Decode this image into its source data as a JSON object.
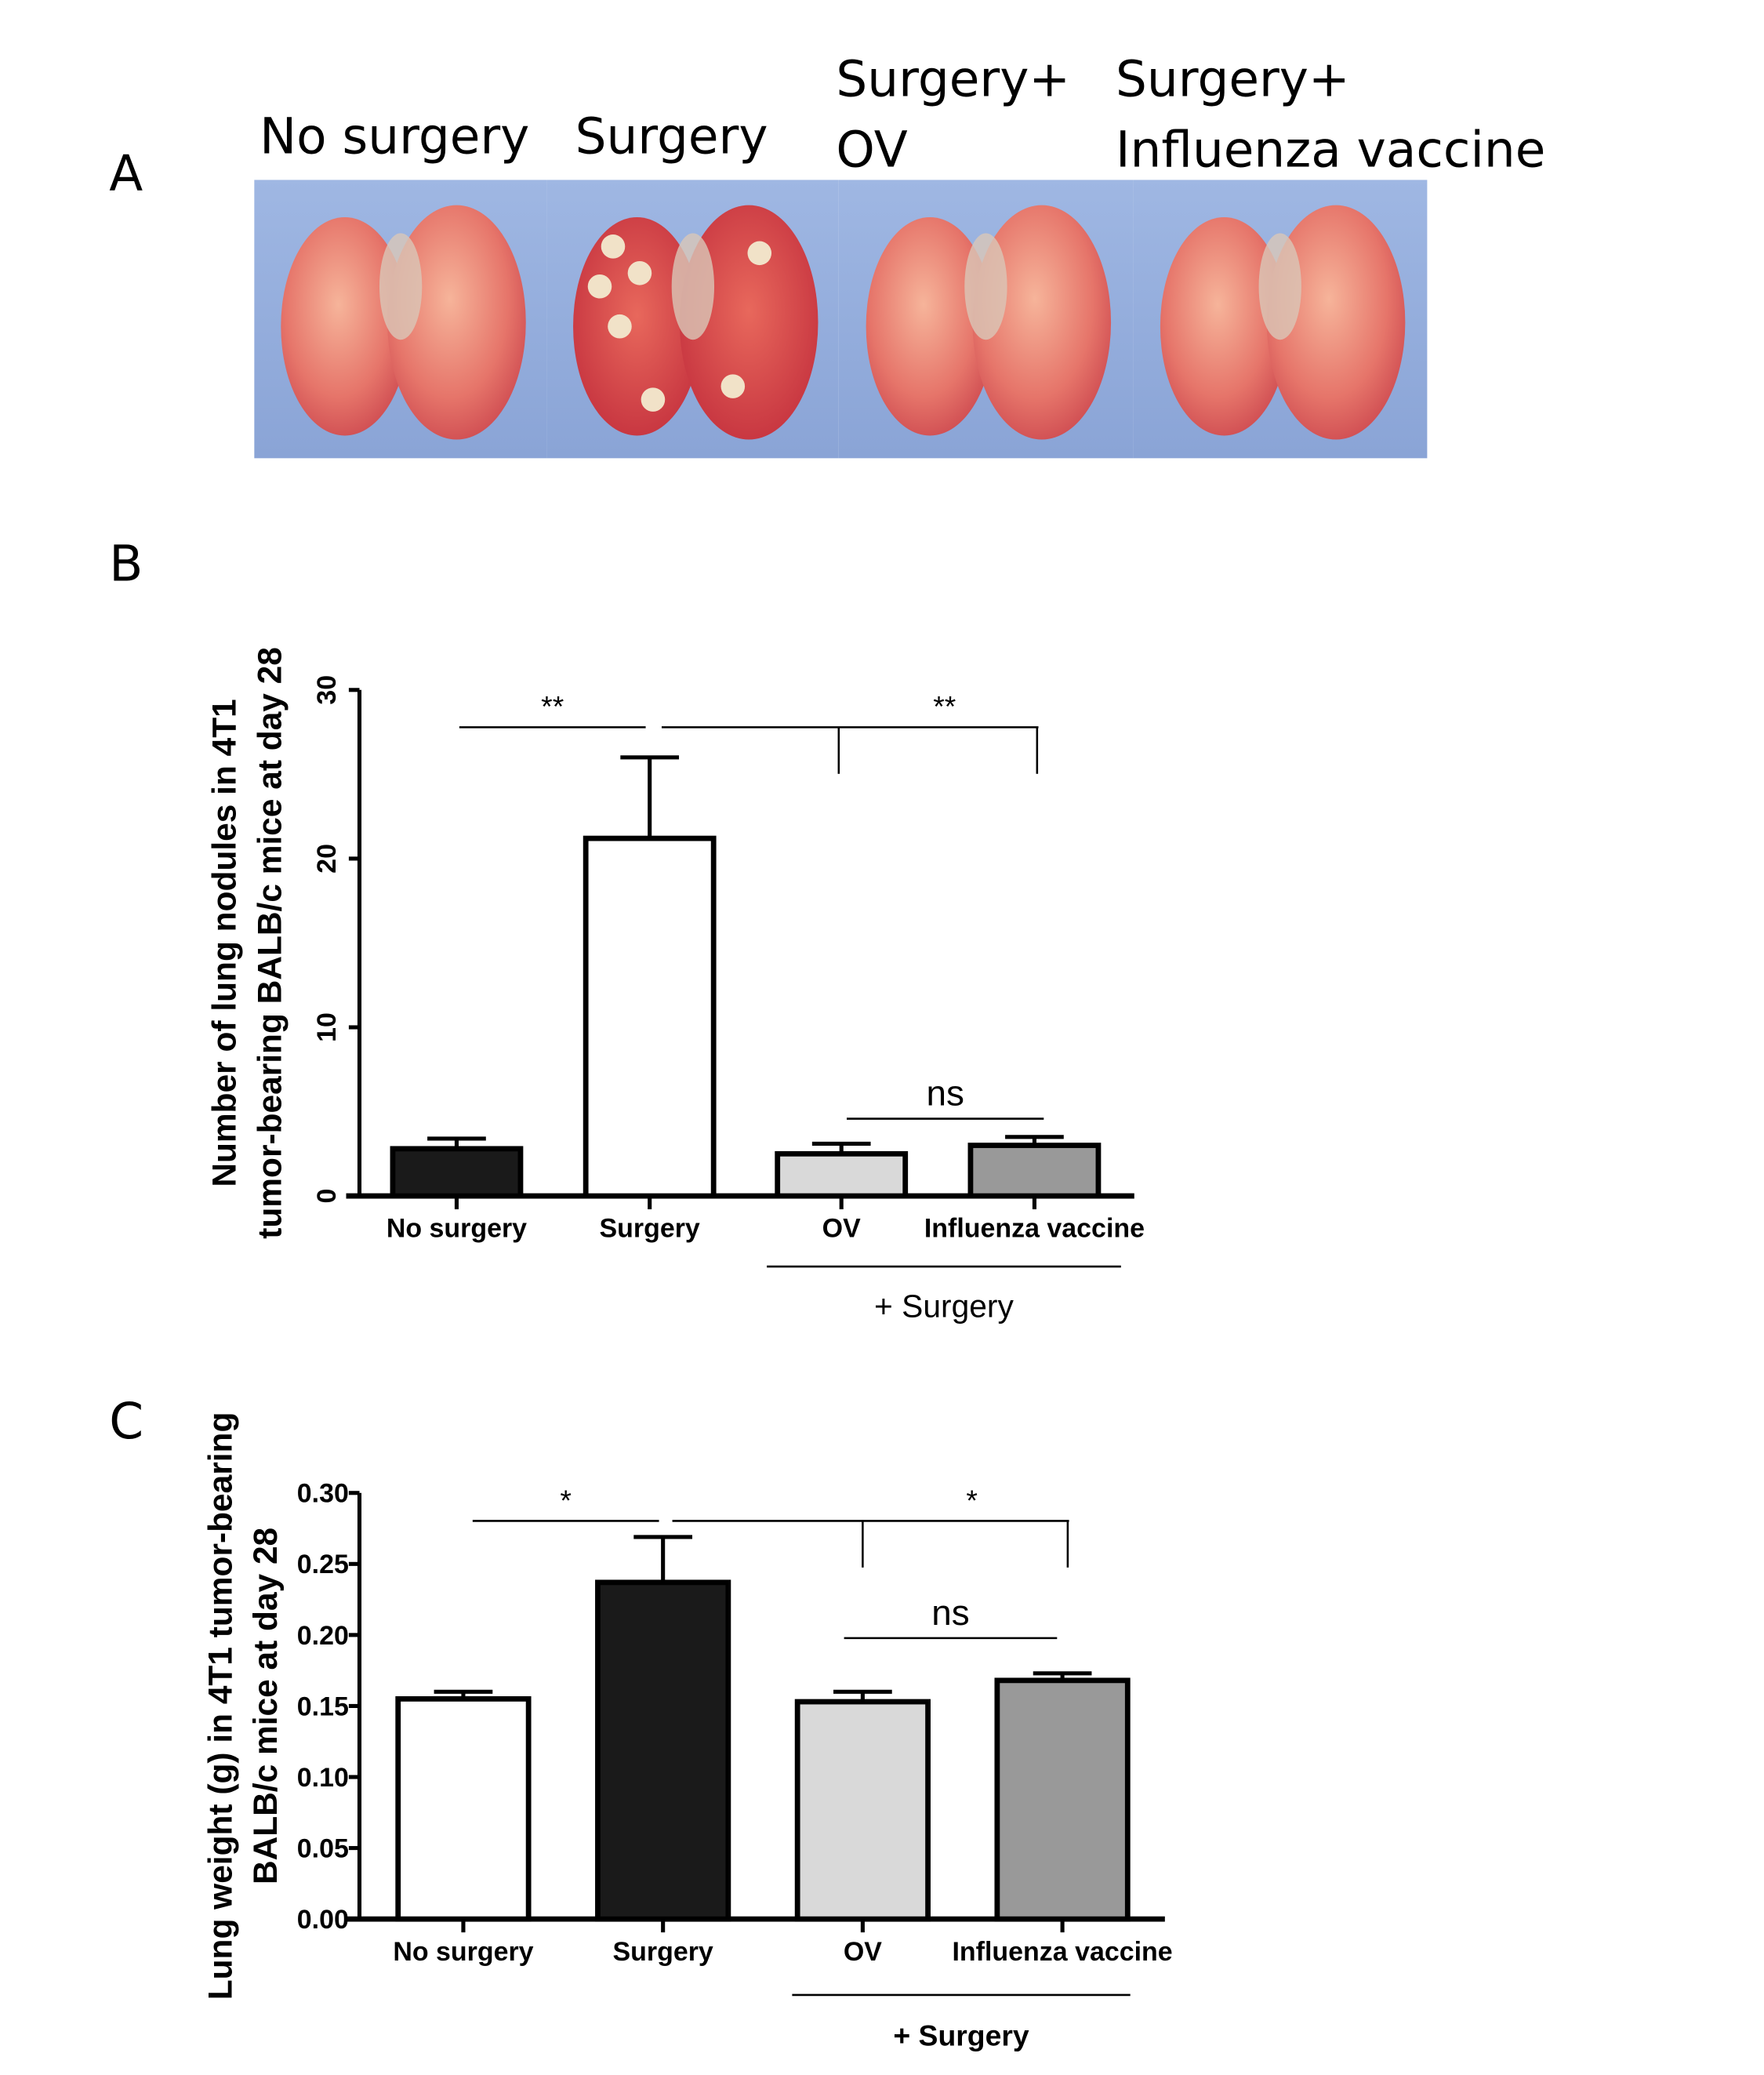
{
  "panel_labels": {
    "a": "A",
    "b": "B",
    "c": "C"
  },
  "photo_titles": [
    {
      "lines": [
        "No surgery"
      ]
    },
    {
      "lines": [
        "Surgery"
      ]
    },
    {
      "lines": [
        "Surgery+",
        "OV"
      ]
    },
    {
      "lines": [
        "Surgery+",
        "Influenza vaccine"
      ]
    }
  ],
  "chart_data": [
    {
      "type": "bar",
      "panel": "B",
      "categories": [
        "No surgery",
        "Surgery",
        "OV",
        "Influenza vaccine"
      ],
      "values": [
        2.8,
        21.2,
        2.5,
        3.0
      ],
      "error_upper": [
        3.4,
        26.0,
        3.1,
        3.5
      ],
      "colors": [
        "#1a1a1a",
        "#ffffff",
        "#d9d9d9",
        "#999999"
      ],
      "ylabel": [
        "Number of lung nodules in 4T1",
        "tumor-bearing BALB/c mice at day 28"
      ],
      "ylim": [
        0,
        30
      ],
      "yticks": [
        "0",
        "10",
        "20",
        "30"
      ],
      "group_label": "+ Surgery",
      "significance": [
        {
          "label": "**"
        },
        {
          "label": "**"
        },
        {
          "label": "ns"
        }
      ]
    },
    {
      "type": "bar",
      "panel": "C",
      "categories": [
        "No surgery",
        "Surgery",
        "OV",
        "Influenza vaccine"
      ],
      "values": [
        0.155,
        0.237,
        0.153,
        0.168
      ],
      "error_upper": [
        0.16,
        0.269,
        0.16,
        0.173
      ],
      "colors": [
        "#ffffff",
        "#1a1a1a",
        "#d9d9d9",
        "#999999"
      ],
      "ylabel": [
        "Lung weight (g) in 4T1 tumor-bearing",
        "BALB/c mice at day 28"
      ],
      "ylim": [
        0,
        0.3
      ],
      "yticks": [
        "0.00",
        "0.05",
        "0.10",
        "0.15",
        "0.20",
        "0.25",
        "0.30"
      ],
      "group_label": "+ Surgery",
      "significance": [
        {
          "label": "*"
        },
        {
          "label": "*"
        },
        {
          "label": "ns"
        }
      ]
    }
  ]
}
